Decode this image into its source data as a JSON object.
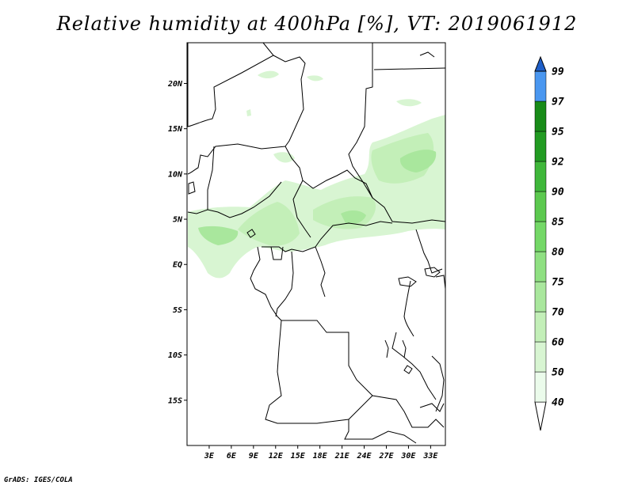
{
  "title": "Relative humidity at 400hPa [%], VT: 2019061912",
  "credit": "GrADS: IGES/COLA",
  "map": {
    "lat_labels": [
      "20N",
      "15N",
      "10N",
      "5N",
      "EQ",
      "5S",
      "10S",
      "15S"
    ],
    "lat_values": [
      20,
      15,
      10,
      5,
      0,
      -5,
      -10,
      -15
    ],
    "lon_labels": [
      "3E",
      "6E",
      "9E",
      "12E",
      "15E",
      "18E",
      "21E",
      "24E",
      "27E",
      "30E",
      "33E"
    ],
    "lon_values": [
      3,
      6,
      9,
      12,
      15,
      18,
      21,
      24,
      27,
      30,
      33
    ],
    "lon_range": [
      0,
      35
    ],
    "lat_range": [
      -20,
      24.5
    ]
  },
  "colorbar": {
    "levels": [
      "40",
      "50",
      "60",
      "70",
      "75",
      "80",
      "85",
      "90",
      "92",
      "95",
      "97",
      "99"
    ],
    "colors": [
      "#ebfbeb",
      "#d8f5d2",
      "#c3efb8",
      "#a9e79d",
      "#8fe082",
      "#74d867",
      "#5cc94f",
      "#3fb73a",
      "#229b22",
      "#188b18",
      "#4a97f0",
      "#2e7ce0",
      "#1f5fc8"
    ],
    "below_color": "#ffffff"
  }
}
